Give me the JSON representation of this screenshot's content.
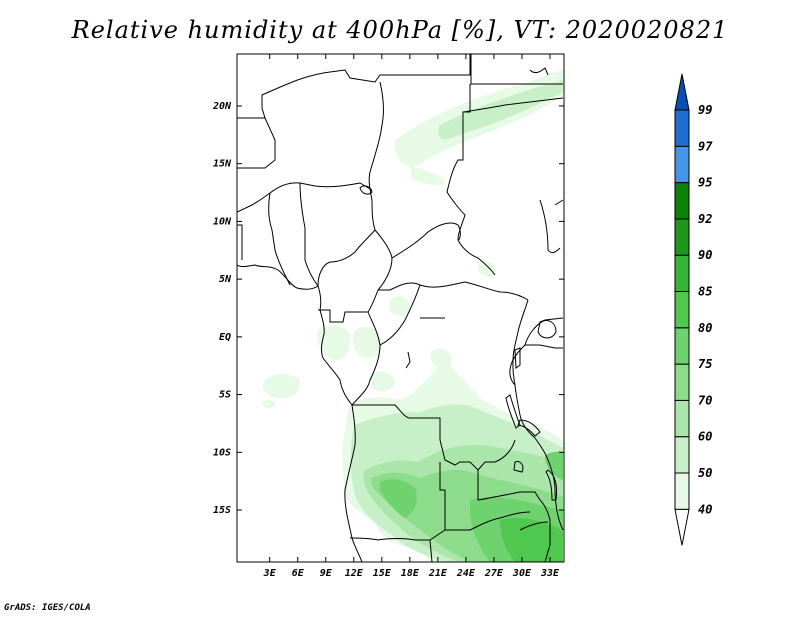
{
  "title": "Relative humidity at 400hPa [%], VT: 2020020821",
  "footer": "GrADS: IGES/COLA",
  "map": {
    "lon_range": [
      -0.5,
      34.5
    ],
    "lat_range": [
      -19.5,
      24.5
    ],
    "lon_ticks": [
      {
        "value": 3,
        "label": "3E"
      },
      {
        "value": 6,
        "label": "6E"
      },
      {
        "value": 9,
        "label": "9E"
      },
      {
        "value": 12,
        "label": "12E"
      },
      {
        "value": 15,
        "label": "15E"
      },
      {
        "value": 18,
        "label": "18E"
      },
      {
        "value": 21,
        "label": "21E"
      },
      {
        "value": 24,
        "label": "24E"
      },
      {
        "value": 27,
        "label": "27E"
      },
      {
        "value": 30,
        "label": "30E"
      },
      {
        "value": 33,
        "label": "33E"
      }
    ],
    "lat_ticks": [
      {
        "value": 20,
        "label": "20N"
      },
      {
        "value": 15,
        "label": "15N"
      },
      {
        "value": 10,
        "label": "10N"
      },
      {
        "value": 5,
        "label": "5N"
      },
      {
        "value": 0,
        "label": "EQ"
      },
      {
        "value": -5,
        "label": "5S"
      },
      {
        "value": -10,
        "label": "10S"
      },
      {
        "value": -15,
        "label": "15S"
      }
    ]
  },
  "colorbar": {
    "levels": [
      "40",
      "50",
      "60",
      "70",
      "75",
      "80",
      "85",
      "90",
      "92",
      "95",
      "97",
      "99"
    ],
    "colors": [
      "#ffffff",
      "#e6fae6",
      "#c8f0c8",
      "#aae6aa",
      "#8cdc8c",
      "#6ed26e",
      "#50c850",
      "#37b437",
      "#1e961e",
      "#0a820a",
      "#4696e6",
      "#1e6ed2",
      "#0a50b4"
    ]
  },
  "humidity_colors": [
    "#e6fae6",
    "#c8f0c8",
    "#aae6aa",
    "#8cdc8c",
    "#6ed26e",
    "#50c850"
  ]
}
